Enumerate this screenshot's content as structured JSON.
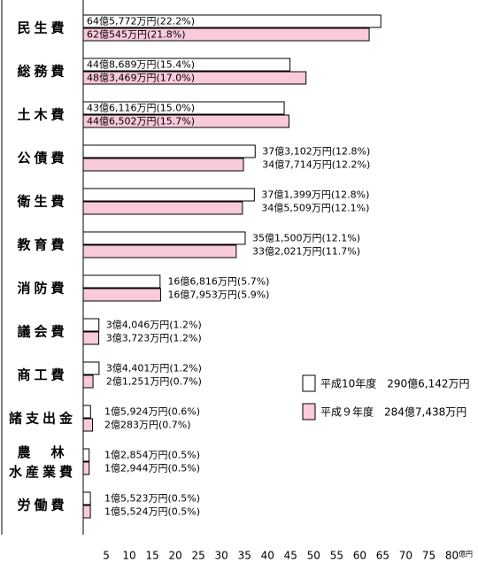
{
  "chart_data": {
    "type": "hbar",
    "categories": [
      "民生費",
      "総務費",
      "土木費",
      "公債費",
      "衛生費",
      "教育費",
      "消防費",
      "議会費",
      "商工費",
      "諸支出金",
      "農　林\n水産業費",
      "労働費"
    ],
    "series": [
      {
        "name": "平成10年度　290億6,142万円",
        "color": "#ffffff",
        "values": [
          64.5772,
          44.8689,
          43.6116,
          37.3102,
          37.1399,
          35.15,
          16.6816,
          3.4046,
          3.4401,
          1.5924,
          1.2854,
          1.5523
        ],
        "value_labels": [
          "64億5,772万円(22.2%)",
          "44億8,689万円(15.4%)",
          "43億6,116万円(15.0%)",
          "37億3,102万円(12.8%)",
          "37億1,399万円(12.8%)",
          "35億1,500万円(12.1%)",
          "16億6,816万円(5.7%)",
          "3億4,046万円(1.2%)",
          "3億4,401万円(1.2%)",
          "1億5,924万円(0.6%)",
          "1億2,854万円(0.5%)",
          "1億5,523万円(0.5%)"
        ]
      },
      {
        "name": "平成９年度　284億7,438万円",
        "color": "#f9c9dc",
        "values": [
          62.0545,
          48.3469,
          44.6502,
          34.7714,
          34.5509,
          33.2021,
          16.7953,
          3.3723,
          2.1251,
          2.0283,
          1.2944,
          1.5524
        ],
        "value_labels": [
          "62億545万円(21.8%)",
          "48億3,469万円(17.0%)",
          "44億6,502万円(15.7%)",
          "34億7,714万円(12.2%)",
          "34億5,509万円(12.1%)",
          "33億2,021万円(11.7%)",
          "16億7,953万円(5.9%)",
          "3億3,723万円(1.2%)",
          "2億1,251万円(0.7%)",
          "2億283万円(0.7%)",
          "1億2,944万円(0.5%)",
          "1億5,524万円(0.5%)"
        ]
      }
    ],
    "xlim": [
      0,
      80
    ],
    "xticks": [
      5,
      10,
      15,
      20,
      25,
      30,
      35,
      40,
      45,
      50,
      55,
      60,
      65,
      70,
      75,
      80
    ],
    "x_unit": "億円",
    "legend": "right"
  }
}
